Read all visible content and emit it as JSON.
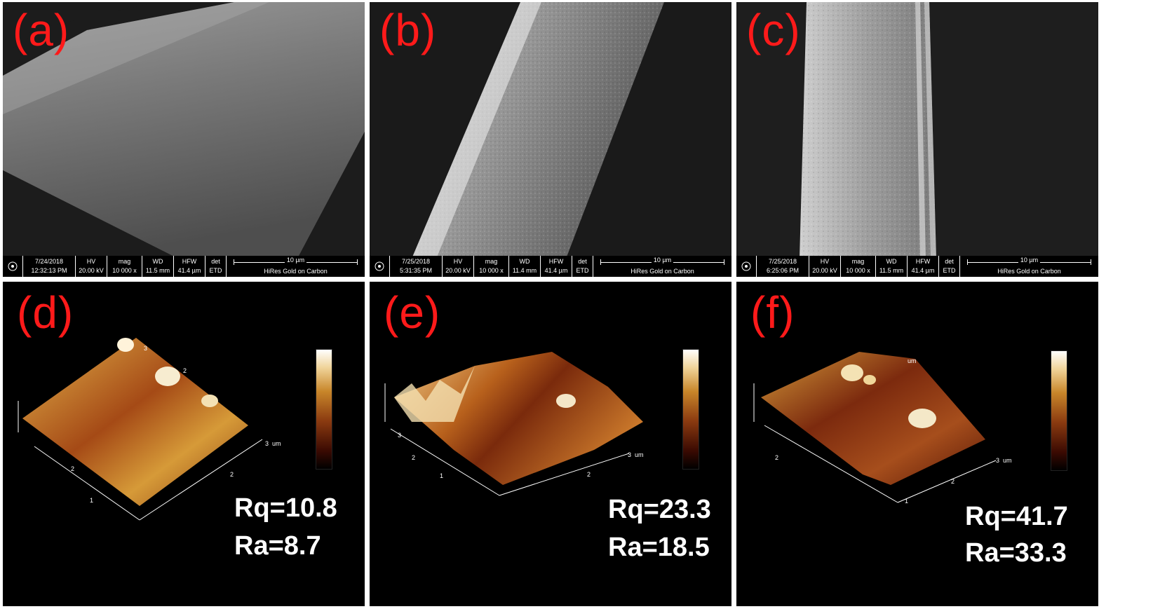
{
  "panels": {
    "a": {
      "label": "(a)",
      "info": {
        "date": "7/24/2018",
        "time": "12:32:13 PM",
        "hv": "20.00 kV",
        "mag": "10 000 x",
        "wd": "11.5 mm",
        "hfw": "41.4 µm",
        "det": "ETD",
        "scale": "10 µm",
        "sample": "HiRes Gold on Carbon"
      }
    },
    "b": {
      "label": "(b)",
      "info": {
        "date": "7/25/2018",
        "time": "5:31:35 PM",
        "hv": "20.00 kV",
        "mag": "10 000 x",
        "wd": "11.4 mm",
        "hfw": "41.4 µm",
        "det": "ETD",
        "scale": "10 µm",
        "sample": "HiRes Gold on Carbon"
      }
    },
    "c": {
      "label": "(c)",
      "info": {
        "date": "7/25/2018",
        "time": "6:25:06 PM",
        "hv": "20.00 kV",
        "mag": "10 000 x",
        "wd": "11.5 mm",
        "hfw": "41.4 µm",
        "det": "ETD",
        "scale": "10 µm",
        "sample": "HiRes Gold on Carbon"
      }
    },
    "d": {
      "label": "(d)",
      "rq": "Rq=10.8",
      "ra": "Ra=8.7"
    },
    "e": {
      "label": "(e)",
      "rq": "Rq=23.3",
      "ra": "Ra=18.5"
    },
    "f": {
      "label": "(f)",
      "rq": "Rq=41.7",
      "ra": "Ra=33.3"
    }
  },
  "info_headers": {
    "hv": "HV",
    "mag": "mag",
    "wd": "WD",
    "hfw": "HFW",
    "det": "det"
  },
  "axis_ticks": {
    "t1": "1",
    "t2": "2",
    "t3": "3",
    "unit": "um"
  },
  "colors": {
    "label_red": "#ff1a1a",
    "afm_gold": "#c8862a",
    "sem_gray": "#6e6e6e"
  }
}
